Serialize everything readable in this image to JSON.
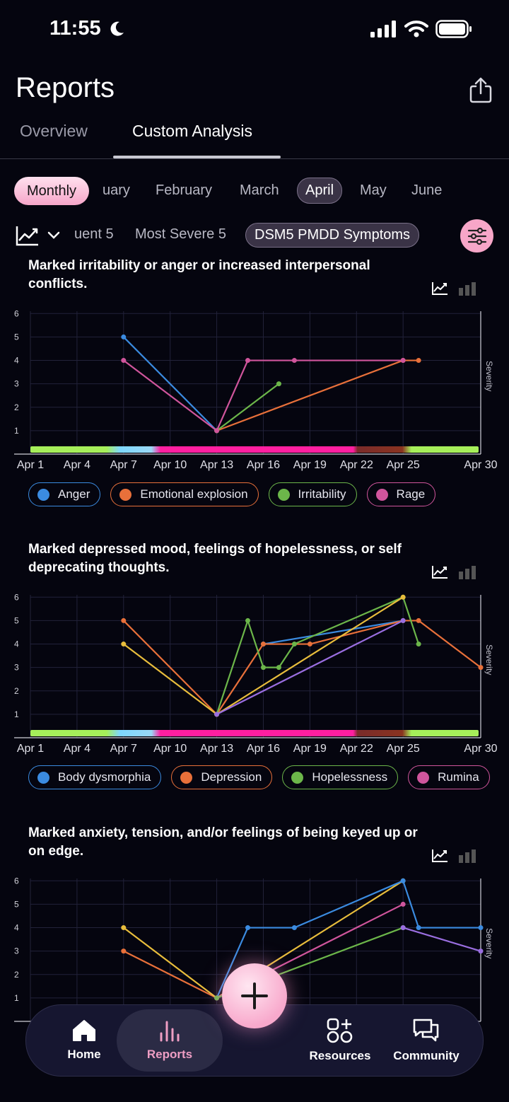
{
  "status": {
    "time": "11:55"
  },
  "header": {
    "title": "Reports"
  },
  "tabs": [
    {
      "label": "Overview"
    },
    {
      "label": "Custom Analysis"
    }
  ],
  "periods": {
    "mode": "Monthly",
    "months": [
      "uary",
      "February",
      "March",
      "April",
      "May",
      "June"
    ],
    "selected": "April"
  },
  "filters": {
    "items": [
      "uent 5",
      "Most Severe 5",
      "DSM5 PMDD Symptoms"
    ],
    "selected": "DSM5 PMDD Symptoms"
  },
  "axis": {
    "ylabel": "Severity",
    "yticks": [
      "1",
      "2",
      "3",
      "4",
      "5",
      "6"
    ],
    "xticks": [
      "Apr 1",
      "Apr 4",
      "Apr 7",
      "Apr 10",
      "Apr 13",
      "Apr 16",
      "Apr 19",
      "Apr 22",
      "Apr 25",
      "Apr 30"
    ]
  },
  "colors": {
    "blue": "#3b8be0",
    "orange": "#e8703a",
    "green": "#6cb64a",
    "pink": "#d0559c",
    "yellow": "#e8bd3c",
    "purple": "#9a6ee0"
  },
  "chart_data": [
    {
      "type": "line",
      "title": "Marked irritability or anger or increased interpersonal conflicts.",
      "ylabel": "Severity",
      "ylim": [
        0,
        6
      ],
      "xlim": [
        1,
        30
      ],
      "series": [
        {
          "name": "Anger",
          "color": "#3b8be0",
          "points": [
            [
              7,
              5
            ],
            [
              13,
              1
            ]
          ]
        },
        {
          "name": "Emotional explosion",
          "color": "#e8703a",
          "points": [
            [
              13,
              1
            ],
            [
              25,
              4
            ],
            [
              26,
              4
            ]
          ]
        },
        {
          "name": "Irritability",
          "color": "#6cb64a",
          "points": [
            [
              13,
              1
            ],
            [
              17,
              3
            ]
          ]
        },
        {
          "name": "Rage",
          "color": "#d0559c",
          "points": [
            [
              7,
              4
            ],
            [
              13,
              1
            ],
            [
              15,
              4
            ],
            [
              18,
              4
            ],
            [
              25,
              4
            ]
          ]
        }
      ]
    },
    {
      "type": "line",
      "title": "Marked depressed mood, feelings of hopelessness, or self deprecating thoughts.",
      "ylabel": "Severity",
      "ylim": [
        0,
        6
      ],
      "xlim": [
        1,
        30
      ],
      "series": [
        {
          "name": "Body dysmorphia",
          "color": "#3b8be0",
          "points": [
            [
              16,
              4
            ],
            [
              25,
              5
            ]
          ]
        },
        {
          "name": "Depression",
          "color": "#e8703a",
          "points": [
            [
              7,
              5
            ],
            [
              13,
              1
            ],
            [
              16,
              4
            ],
            [
              19,
              4
            ],
            [
              25,
              5
            ],
            [
              26,
              5
            ],
            [
              30,
              3
            ]
          ]
        },
        {
          "name": "Hopelessness",
          "color": "#6cb64a",
          "points": [
            [
              13,
              1
            ],
            [
              15,
              5
            ],
            [
              16,
              3
            ],
            [
              17,
              3
            ],
            [
              18,
              4
            ],
            [
              25,
              6
            ],
            [
              26,
              4
            ]
          ]
        },
        {
          "name": "Rumina",
          "color": "#d0559c",
          "points": []
        },
        {
          "color": "#e8bd3c",
          "points": [
            [
              7,
              4
            ],
            [
              13,
              1
            ],
            [
              25,
              6
            ]
          ]
        },
        {
          "color": "#9a6ee0",
          "points": [
            [
              13,
              1
            ],
            [
              25,
              5
            ]
          ]
        }
      ]
    },
    {
      "type": "line",
      "title": "Marked anxiety, tension, and/or feelings of being keyed up or on edge.",
      "ylabel": "Severity",
      "ylim": [
        0,
        6
      ],
      "xlim": [
        1,
        30
      ],
      "series": [
        {
          "color": "#e8703a",
          "points": [
            [
              7,
              3
            ],
            [
              13,
              1
            ]
          ]
        },
        {
          "color": "#e8bd3c",
          "points": [
            [
              7,
              4
            ],
            [
              13,
              1
            ],
            [
              25,
              6
            ]
          ]
        },
        {
          "color": "#3b8be0",
          "points": [
            [
              13,
              1
            ],
            [
              15,
              4
            ],
            [
              18,
              4
            ],
            [
              25,
              6
            ],
            [
              26,
              4
            ],
            [
              30,
              4
            ]
          ]
        },
        {
          "color": "#d0559c",
          "points": [
            [
              13,
              1
            ],
            [
              25,
              5
            ]
          ]
        },
        {
          "color": "#6cb64a",
          "points": [
            [
              13,
              1
            ],
            [
              25,
              4
            ]
          ]
        },
        {
          "color": "#9a6ee0",
          "points": [
            [
              25,
              4
            ],
            [
              30,
              3
            ]
          ]
        }
      ]
    }
  ],
  "nav": {
    "items": [
      {
        "label": "Home"
      },
      {
        "label": "Reports"
      },
      {
        "label": "Resources"
      },
      {
        "label": "Community"
      }
    ]
  }
}
